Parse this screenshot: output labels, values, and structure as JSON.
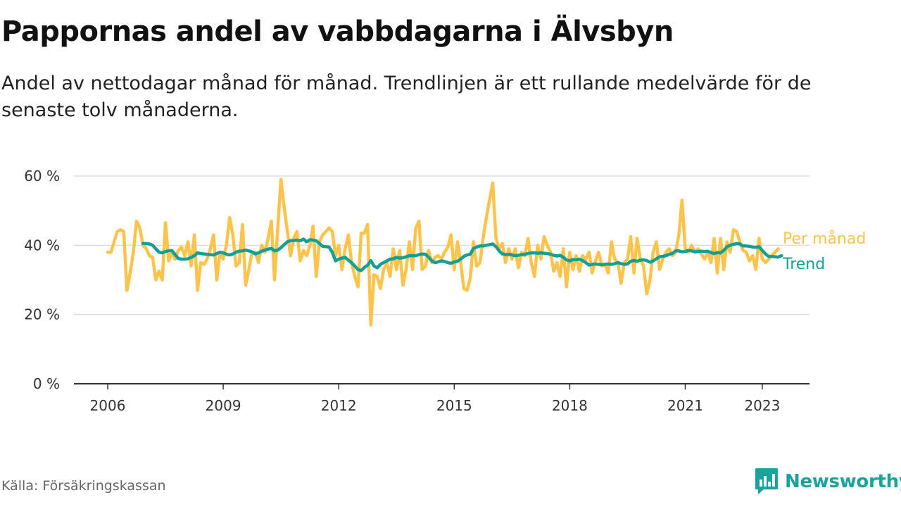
{
  "title": "Pappornas andel av vabbdagarna i Älvsbyn",
  "subtitle": "Andel av nettodagar månad för månad. Trendlinjen är ett rullande medelvärde för de senaste tolv månaderna.",
  "source": "Källa: Försäkringskassan",
  "logo_text": "Newsworthy",
  "colors": {
    "monthly": "#fdc34a",
    "trend": "#13a094",
    "grid": "#dddddd",
    "axis": "#333333",
    "logo": "#1aa39a"
  },
  "chart_data": {
    "type": "line",
    "title": "",
    "xlabel": "",
    "ylabel": "",
    "xlim": [
      2006.0,
      2023.83
    ],
    "ylim": [
      0,
      60
    ],
    "y_ticks": [
      0,
      20,
      40,
      60
    ],
    "y_tick_labels": [
      "0 %",
      "20 %",
      "40 %",
      "60 %"
    ],
    "x_ticks": [
      2006,
      2009,
      2012,
      2015,
      2018,
      2021,
      2023
    ],
    "x_tick_labels": [
      "2006",
      "2009",
      "2012",
      "2015",
      "2018",
      "2021",
      "2023"
    ],
    "grid": true,
    "legend": "inline at line ends (right)",
    "series": [
      {
        "name": "Per månad",
        "color": "#fdc34a",
        "start": "2006-01",
        "values": [
          38,
          38,
          41,
          44,
          44.5,
          44,
          27,
          32,
          38,
          47,
          45,
          40,
          39,
          37,
          36.5,
          30,
          32.5,
          30,
          46.5,
          35.5,
          38,
          36,
          38.5,
          39.5,
          37,
          41,
          34,
          43,
          27,
          35,
          34.5,
          36,
          39,
          43,
          30,
          38,
          36,
          40,
          48,
          43,
          34,
          35,
          46,
          28.5,
          33,
          38,
          38,
          35,
          40,
          38,
          42,
          47,
          30,
          45,
          59,
          51,
          44,
          37,
          42,
          44,
          35.5,
          38.5,
          37,
          40,
          45.5,
          31,
          41,
          43,
          44,
          45,
          44,
          37,
          40,
          33,
          39,
          43,
          35,
          31,
          28,
          43.5,
          43.5,
          46,
          17,
          31.5,
          31,
          27.5,
          33,
          35,
          31,
          39,
          33,
          38.5,
          28.5,
          33,
          41,
          33,
          45,
          47,
          33,
          34,
          38.5,
          35,
          36.5,
          37,
          36,
          38,
          39.5,
          43,
          33,
          41,
          35,
          27.5,
          27,
          30.5,
          41,
          34,
          35,
          42,
          48,
          53,
          58,
          42,
          39,
          40.5,
          35,
          39,
          36,
          39,
          33.5,
          38,
          37,
          42,
          35,
          31,
          40,
          36,
          42.5,
          40,
          38,
          32.5,
          35,
          31,
          39,
          28,
          38,
          33,
          37,
          32.5,
          37,
          36,
          38,
          32,
          35.5,
          38,
          34,
          34.5,
          32,
          41,
          36,
          35,
          29,
          35,
          36,
          42.5,
          32,
          42,
          36,
          34,
          26,
          30,
          38,
          41,
          33,
          36,
          38,
          39,
          37,
          38,
          43,
          53,
          39,
          38,
          40,
          38,
          39,
          37.5,
          36,
          38,
          35,
          42,
          32,
          42,
          33,
          41,
          38,
          44.5,
          44,
          41,
          38.5,
          38,
          35.5,
          37,
          33,
          42,
          36,
          35,
          36,
          37,
          38,
          39
        ]
      },
      {
        "name": "Trend",
        "color": "#13a094",
        "start": "2006-12",
        "values": [
          40.5,
          40.5,
          40.4,
          40,
          39,
          38,
          37.8,
          38.2,
          38.4,
          38.5,
          37.3,
          36.2,
          36,
          36,
          36.1,
          36.5,
          37,
          37.8,
          37.6,
          37.5,
          37.4,
          37.3,
          37.2,
          37.6,
          38,
          37.8,
          37.4,
          37.2,
          37.5,
          38,
          38.3,
          38.4,
          38.6,
          38.4,
          38.1,
          37.5,
          37.8,
          38.3,
          38.6,
          38.9,
          39.1,
          38.4,
          38.6,
          39.3,
          40.2,
          41,
          41.3,
          41.4,
          41.5,
          41.3,
          41.8,
          41,
          41.6,
          41.5,
          41.3,
          40.5,
          39.7,
          39.6,
          39.5,
          38,
          35.5,
          36,
          36.3,
          36.5,
          35.7,
          35,
          34,
          33,
          32.7,
          33.6,
          34.3,
          35.6,
          34,
          33.5,
          34.5,
          35,
          35.5,
          36,
          36.1,
          36.5,
          36.3,
          36.4,
          36.7,
          37,
          37,
          37,
          37.3,
          37.5,
          37.4,
          36.6,
          35.5,
          35,
          35.2,
          35.5,
          35.3,
          35,
          34.8,
          35.2,
          35.4,
          36,
          36.8,
          37.2,
          37.4,
          39.1,
          39.5,
          39.8,
          39.8,
          40,
          40.2,
          40.4,
          39.6,
          38.4,
          37.5,
          37.3,
          37.4,
          37.2,
          37,
          37.1,
          37.3,
          37.4,
          37.6,
          37.8,
          37.8,
          37.7,
          37.8,
          37.7,
          37.6,
          37.4,
          37.1,
          36.9,
          37.1,
          36.5,
          35.8,
          35.5,
          35.9,
          35.8,
          36,
          35.6,
          35,
          34.3,
          34.5,
          34.6,
          34.5,
          34.4,
          34.5,
          34.6,
          34.5,
          34.7,
          35,
          34.7,
          34.5,
          34.6,
          35.4,
          35.6,
          35.4,
          35.7,
          35.8,
          35.6,
          35.1,
          35.5,
          36.1,
          36.7,
          36.8,
          37,
          37.4,
          37.6,
          38.4,
          38.4,
          38.1,
          38.2,
          38.5,
          38.4,
          38.1,
          38.2,
          38.3,
          38.2,
          38.3,
          37.9,
          37.6,
          37.9,
          37.8,
          38.5,
          39.6,
          40,
          40.3,
          40.5,
          40.4,
          39.8,
          39.8,
          39.7,
          39.5,
          39.4,
          39.6,
          38.5,
          37.5,
          36.8,
          36.8,
          36.7,
          36.6,
          37
        ]
      }
    ]
  }
}
